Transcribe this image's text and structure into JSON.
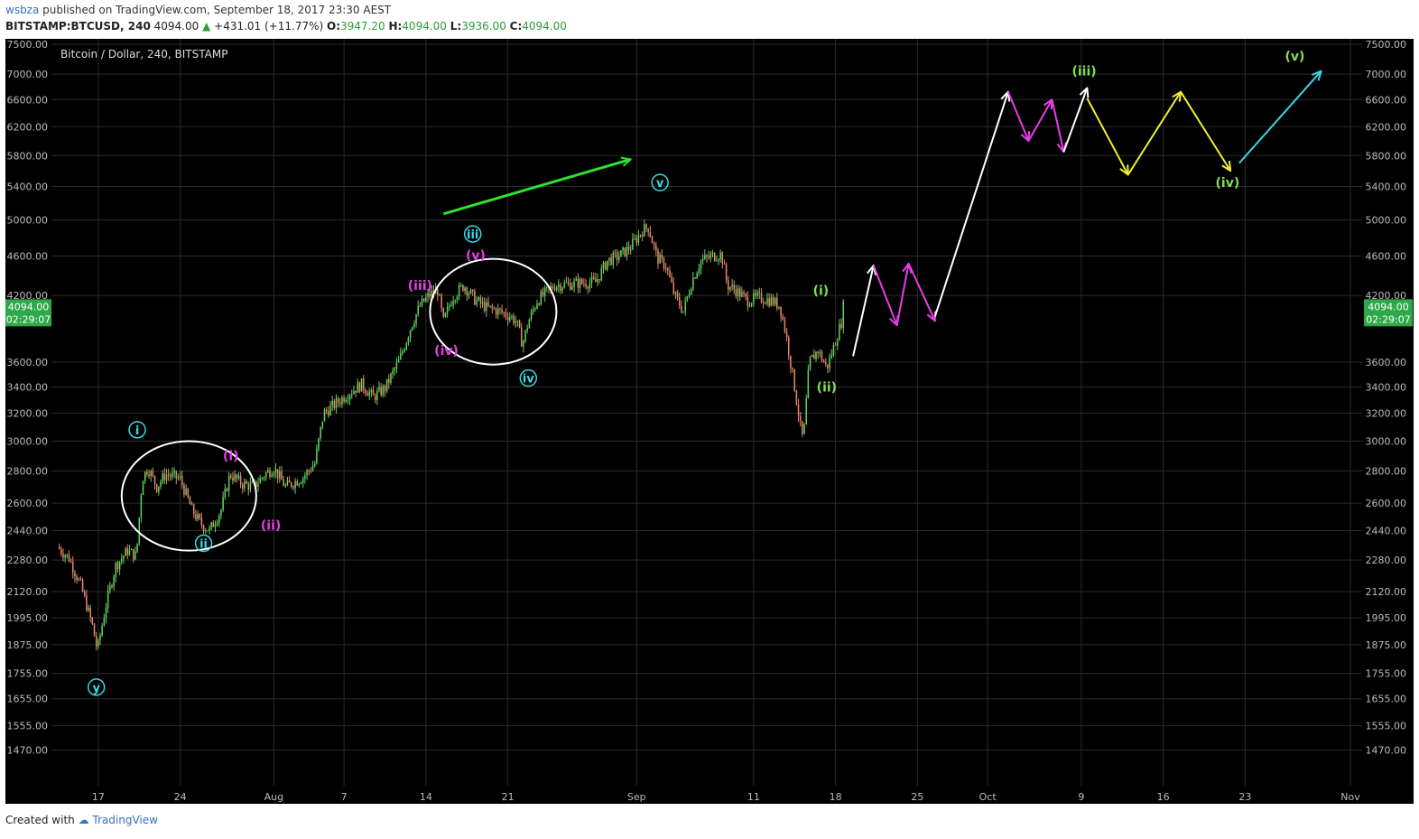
{
  "header": {
    "publisher": "wsbza",
    "published_text": "published on TradingView.com, September 18, 2017 23:30 AEST",
    "symbol": "BITSTAMP:BTCUSD, 240",
    "last": "4094.00",
    "change": "+431.01 (+11.77%)",
    "o_label": "O:",
    "o_val": "3947.20",
    "h_label": "H:",
    "h_val": "4094.00",
    "l_label": "L:",
    "l_val": "3936.00",
    "c_label": "C:",
    "c_val": "4094.00"
  },
  "footer": {
    "created_with": "Created with",
    "brand": "TradingView"
  },
  "colors": {
    "background": "#000000",
    "up": "#5fd35f",
    "down": "#e8866a",
    "price_tag": "#2fa84a",
    "magenta": "#e83ee8",
    "cyan": "#38d8e8",
    "green_label": "#7ee050",
    "arrow_green": "#2fe02f",
    "white": "#ffffff",
    "yellow": "#f0f030"
  },
  "chart_data": {
    "type": "candlestick",
    "title": "Bitcoin / Dollar, 240, BITSTAMP",
    "scale": "log",
    "ylim": [
      1400,
      7500
    ],
    "y_ticks": [
      7500,
      7000,
      6600,
      6200,
      5800,
      5400,
      5000,
      4600,
      4200,
      3600,
      3400,
      3200,
      3000,
      2800,
      2600,
      2440,
      2280,
      2120,
      1995,
      1875,
      1755,
      1655,
      1555,
      1470
    ],
    "y_tick_labels": [
      "7500.00",
      "7000.00",
      "6600.00",
      "6200.00",
      "5800.00",
      "5400.00",
      "5000.00",
      "4600.00",
      "4200.00",
      "3600.00",
      "3400.00",
      "3200.00",
      "3000.00",
      "2800.00",
      "2600.00",
      "2440.00",
      "2280.00",
      "2120.00",
      "1995.00",
      "1875.00",
      "1755.00",
      "1655.00",
      "1555.00",
      "1470.00"
    ],
    "x_start": "2017-07-13",
    "x_end": "2017-11-02",
    "x_ticks": [
      {
        "date": "2017-07-17",
        "label": "17"
      },
      {
        "date": "2017-07-24",
        "label": "24"
      },
      {
        "date": "2017-08-01",
        "label": "Aug"
      },
      {
        "date": "2017-08-07",
        "label": "7"
      },
      {
        "date": "2017-08-14",
        "label": "14"
      },
      {
        "date": "2017-08-21",
        "label": "21"
      },
      {
        "date": "2017-09-01",
        "label": "Sep"
      },
      {
        "date": "2017-09-11",
        "label": "11"
      },
      {
        "date": "2017-09-18",
        "label": "18"
      },
      {
        "date": "2017-09-25",
        "label": "25"
      },
      {
        "date": "2017-10-01",
        "label": "Oct"
      },
      {
        "date": "2017-10-09",
        "label": "9"
      },
      {
        "date": "2017-10-16",
        "label": "16"
      },
      {
        "date": "2017-10-23",
        "label": "23"
      },
      {
        "date": "2017-11-01",
        "label": "Nov"
      }
    ],
    "last_price": {
      "label": "4094.00",
      "countdown": "02:29:07",
      "value": 4094
    },
    "price_path": [
      [
        "2017-07-13 12:00",
        2350
      ],
      [
        "2017-07-14 12:00",
        2290
      ],
      [
        "2017-07-15 12:00",
        2150
      ],
      [
        "2017-07-16 12:00",
        1960
      ],
      [
        "2017-07-16 22:00",
        1850
      ],
      [
        "2017-07-17 18:00",
        2080
      ],
      [
        "2017-07-18 12:00",
        2250
      ],
      [
        "2017-07-19 12:00",
        2330
      ],
      [
        "2017-07-20 06:00",
        2300
      ],
      [
        "2017-07-20 18:00",
        2750
      ],
      [
        "2017-07-21 06:00",
        2820
      ],
      [
        "2017-07-22 00:00",
        2700
      ],
      [
        "2017-07-22 18:00",
        2780
      ],
      [
        "2017-07-24 00:00",
        2750
      ],
      [
        "2017-07-25 00:00",
        2560
      ],
      [
        "2017-07-25 18:00",
        2480
      ],
      [
        "2017-07-26 12:00",
        2440
      ],
      [
        "2017-07-27 12:00",
        2560
      ],
      [
        "2017-07-28 06:00",
        2780
      ],
      [
        "2017-07-29 06:00",
        2720
      ],
      [
        "2017-07-30 06:00",
        2700
      ],
      [
        "2017-07-31 06:00",
        2780
      ],
      [
        "2017-08-01 00:00",
        2820
      ],
      [
        "2017-08-02 00:00",
        2700
      ],
      [
        "2017-08-03 12:00",
        2760
      ],
      [
        "2017-08-04 12:00",
        2850
      ],
      [
        "2017-08-05 06:00",
        3200
      ],
      [
        "2017-08-06 00:00",
        3250
      ],
      [
        "2017-08-07 12:00",
        3360
      ],
      [
        "2017-08-08 12:00",
        3420
      ],
      [
        "2017-08-09 12:00",
        3320
      ],
      [
        "2017-08-10 12:00",
        3390
      ],
      [
        "2017-08-11 18:00",
        3620
      ],
      [
        "2017-08-12 18:00",
        3920
      ],
      [
        "2017-08-13 12:00",
        4100
      ],
      [
        "2017-08-14 06:00",
        4200
      ],
      [
        "2017-08-15 00:00",
        4250
      ],
      [
        "2017-08-15 12:00",
        3950
      ],
      [
        "2017-08-16 06:00",
        4180
      ],
      [
        "2017-08-17 06:00",
        4300
      ],
      [
        "2017-08-18 06:00",
        4150
      ],
      [
        "2017-08-19 06:00",
        4080
      ],
      [
        "2017-08-20 06:00",
        4050
      ],
      [
        "2017-08-21 06:00",
        4000
      ],
      [
        "2017-08-21 18:00",
        3950
      ],
      [
        "2017-08-22 06:00",
        3750
      ],
      [
        "2017-08-22 18:00",
        3950
      ],
      [
        "2017-08-23 12:00",
        4150
      ],
      [
        "2017-08-25 00:00",
        4300
      ],
      [
        "2017-08-27 00:00",
        4320
      ],
      [
        "2017-08-28 12:00",
        4330
      ],
      [
        "2017-08-29 12:00",
        4550
      ],
      [
        "2017-08-30 12:00",
        4600
      ],
      [
        "2017-08-31 12:00",
        4700
      ],
      [
        "2017-09-01 12:00",
        4880
      ],
      [
        "2017-09-02 00:00",
        4920
      ],
      [
        "2017-09-02 18:00",
        4580
      ],
      [
        "2017-09-03 12:00",
        4500
      ],
      [
        "2017-09-04 06:00",
        4200
      ],
      [
        "2017-09-05 00:00",
        4050
      ],
      [
        "2017-09-05 18:00",
        4350
      ],
      [
        "2017-09-06 12:00",
        4550
      ],
      [
        "2017-09-07 12:00",
        4600
      ],
      [
        "2017-09-08 06:00",
        4620
      ],
      [
        "2017-09-08 18:00",
        4300
      ],
      [
        "2017-09-09 12:00",
        4250
      ],
      [
        "2017-09-10 12:00",
        4150
      ],
      [
        "2017-09-11 12:00",
        4180
      ],
      [
        "2017-09-12 12:00",
        4150
      ],
      [
        "2017-09-13 06:00",
        4100
      ],
      [
        "2017-09-13 18:00",
        3850
      ],
      [
        "2017-09-14 12:00",
        3400
      ],
      [
        "2017-09-15 00:00",
        3100
      ],
      [
        "2017-09-15 06:00",
        3000
      ],
      [
        "2017-09-15 18:00",
        3600
      ],
      [
        "2017-09-16 12:00",
        3700
      ],
      [
        "2017-09-17 06:00",
        3550
      ],
      [
        "2017-09-17 18:00",
        3700
      ],
      [
        "2017-09-18 12:00",
        3950
      ],
      [
        "2017-09-18 16:00",
        4094
      ]
    ],
    "annotations": {
      "labels": [
        {
          "text": "y",
          "style": "circle",
          "color": "cyan",
          "date": "2017-07-16 20:00",
          "price": 1700
        },
        {
          "text": "i",
          "style": "circle",
          "color": "cyan",
          "date": "2017-07-20 08:00",
          "price": 3080
        },
        {
          "text": "ii",
          "style": "circle",
          "color": "cyan",
          "date": "2017-07-26 00:00",
          "price": 2370
        },
        {
          "text": "(i)",
          "style": "text",
          "color": "magenta",
          "date": "2017-07-28 08:00",
          "price": 2900
        },
        {
          "text": "(ii)",
          "style": "text",
          "color": "magenta",
          "date": "2017-07-31 18:00",
          "price": 2470
        },
        {
          "text": "(iii)",
          "style": "text",
          "color": "magenta",
          "date": "2017-08-13 12:00",
          "price": 4300
        },
        {
          "text": "(iv)",
          "style": "text",
          "color": "magenta",
          "date": "2017-08-15 18:00",
          "price": 3700
        },
        {
          "text": "iii",
          "style": "circle",
          "color": "cyan",
          "date": "2017-08-18 00:00",
          "price": 4840
        },
        {
          "text": "(v)",
          "style": "text",
          "color": "magenta",
          "date": "2017-08-18 06:00",
          "price": 4610
        },
        {
          "text": "iv",
          "style": "circle",
          "color": "cyan",
          "date": "2017-08-22 18:00",
          "price": 3470
        },
        {
          "text": "v",
          "style": "circle",
          "color": "cyan",
          "date": "2017-09-03 00:00",
          "price": 5450
        },
        {
          "text": "(i)",
          "style": "text",
          "color": "green_label",
          "date": "2017-09-16 18:00",
          "price": 4250
        },
        {
          "text": "(ii)",
          "style": "text",
          "color": "green_label",
          "date": "2017-09-17 06:00",
          "price": 3400
        },
        {
          "text": "(iii)",
          "style": "text",
          "color": "green_label",
          "date": "2017-10-09 06:00",
          "price": 7050
        },
        {
          "text": "(iv)",
          "style": "text",
          "color": "green_label",
          "date": "2017-10-21 12:00",
          "price": 5450
        },
        {
          "text": "(v)",
          "style": "text",
          "color": "green_label",
          "date": "2017-10-27 06:00",
          "price": 7300
        }
      ],
      "ellipses": [
        {
          "center_date": "2017-07-24 18:00",
          "center_price": 2720,
          "half_width_days": 5.75,
          "top_price": 3000,
          "bottom_price": 2330
        },
        {
          "center_date": "2017-08-19 18:00",
          "center_price": 4000,
          "half_width_days": 5.4,
          "top_price": 4570,
          "bottom_price": 3580
        }
      ],
      "paths": [
        {
          "color": "arrow_green",
          "points": [
            [
              "2017-08-15 12:00",
              5070
            ],
            [
              "2017-08-31 12:00",
              5750
            ]
          ]
        },
        {
          "color": "white",
          "points": [
            [
              "2017-09-19 12:00",
              3650
            ],
            [
              "2017-09-21 06:00",
              4500
            ]
          ]
        },
        {
          "color": "magenta",
          "points": [
            [
              "2017-09-21 06:00",
              4500
            ],
            [
              "2017-09-23 06:00",
              3920
            ],
            [
              "2017-09-24 06:00",
              4520
            ],
            [
              "2017-09-26 12:00",
              3960
            ]
          ]
        },
        {
          "color": "white",
          "points": [
            [
              "2017-09-26 12:00",
              4000
            ],
            [
              "2017-10-02 18:00",
              6720
            ]
          ]
        },
        {
          "color": "magenta",
          "points": [
            [
              "2017-10-02 18:00",
              6720
            ],
            [
              "2017-10-04 12:00",
              6000
            ],
            [
              "2017-10-06 12:00",
              6600
            ],
            [
              "2017-10-07 12:00",
              5850
            ]
          ]
        },
        {
          "color": "white",
          "points": [
            [
              "2017-10-07 12:00",
              5850
            ],
            [
              "2017-10-09 12:00",
              6780
            ]
          ]
        },
        {
          "color": "yellow",
          "points": [
            [
              "2017-10-09 12:00",
              6620
            ],
            [
              "2017-10-13 00:00",
              5550
            ],
            [
              "2017-10-17 12:00",
              6720
            ],
            [
              "2017-10-21 18:00",
              5600
            ]
          ]
        },
        {
          "color": "cyan",
          "points": [
            [
              "2017-10-22 12:00",
              5700
            ],
            [
              "2017-10-29 12:00",
              7050
            ]
          ]
        }
      ]
    }
  }
}
